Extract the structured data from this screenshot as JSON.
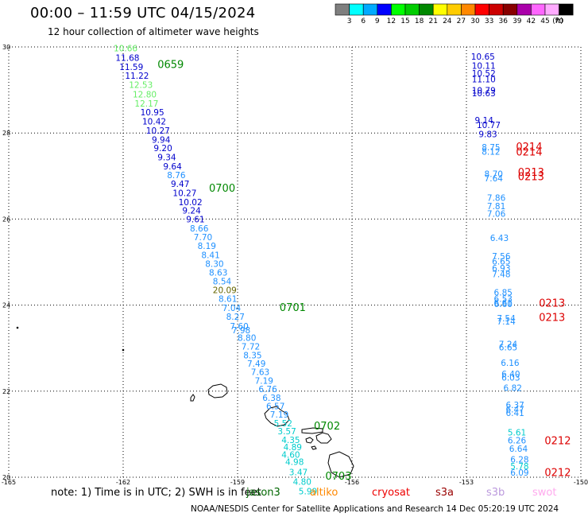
{
  "header": {
    "title": "00:00 – 11:59 UTC 04/15/2024",
    "subtitle": "12 hour collection of altimeter wave heights"
  },
  "legend": {
    "units": "(ft)",
    "bins": [
      {
        "label": "3",
        "color": "#7f7f7f"
      },
      {
        "label": "6",
        "color": "#00ffff"
      },
      {
        "label": "9",
        "color": "#00aaff"
      },
      {
        "label": "12",
        "color": "#0000ff"
      },
      {
        "label": "15",
        "color": "#00ff00"
      },
      {
        "label": "18",
        "color": "#00cc00"
      },
      {
        "label": "21",
        "color": "#008800"
      },
      {
        "label": "24",
        "color": "#ffff00"
      },
      {
        "label": "27",
        "color": "#ffcc00"
      },
      {
        "label": "30",
        "color": "#ff8800"
      },
      {
        "label": "33",
        "color": "#ff0000"
      },
      {
        "label": "36",
        "color": "#cc0000"
      },
      {
        "label": "39",
        "color": "#880000"
      },
      {
        "label": "42",
        "color": "#aa00aa"
      },
      {
        "label": "45",
        "color": "#ff66ff"
      },
      {
        "label": "70",
        "color": "#ffaaff"
      },
      {
        "label": "",
        "color": "#000000"
      }
    ]
  },
  "map": {
    "lat_range": [
      20,
      30
    ],
    "lon_range": [
      -165,
      -150
    ],
    "lat_labels": [
      "30",
      "28",
      "26",
      "24",
      "22",
      "20"
    ],
    "lon_labels": [
      "-165",
      "-162",
      "-159",
      "-156",
      "-153",
      "-150"
    ],
    "left_track": [
      {
        "v": "10.66",
        "lon": -162.25,
        "lat": 29.97,
        "c": "#66ee66"
      },
      {
        "v": "11.68",
        "lon": -162.2,
        "lat": 29.75,
        "c": "#0000cc"
      },
      {
        "v": "11.59",
        "lon": -162.1,
        "lat": 29.54,
        "c": "#0000cc"
      },
      {
        "v": "11.22",
        "lon": -161.95,
        "lat": 29.33,
        "c": "#0000cc"
      },
      {
        "v": "12.53",
        "lon": -161.85,
        "lat": 29.12,
        "c": "#66ee66"
      },
      {
        "v": "12.80",
        "lon": -161.75,
        "lat": 28.9,
        "c": "#66ee66"
      },
      {
        "v": "12.17",
        "lon": -161.7,
        "lat": 28.69,
        "c": "#66ee66"
      },
      {
        "v": "10.95",
        "lon": -161.55,
        "lat": 28.48,
        "c": "#0000cc"
      },
      {
        "v": "10.42",
        "lon": -161.5,
        "lat": 28.27,
        "c": "#0000cc"
      },
      {
        "v": "10.27",
        "lon": -161.4,
        "lat": 28.06,
        "c": "#0000cc"
      },
      {
        "v": "9.94",
        "lon": -161.25,
        "lat": 27.85,
        "c": "#0000cc"
      },
      {
        "v": "9.20",
        "lon": -161.2,
        "lat": 27.65,
        "c": "#0000cc"
      },
      {
        "v": "9.34",
        "lon": -161.1,
        "lat": 27.44,
        "c": "#0000cc"
      },
      {
        "v": "9.64",
        "lon": -160.95,
        "lat": 27.23,
        "c": "#0000cc"
      },
      {
        "v": "8.76",
        "lon": -160.85,
        "lat": 27.02,
        "c": "#1e90ff"
      },
      {
        "v": "9.47",
        "lon": -160.75,
        "lat": 26.82,
        "c": "#0000cc"
      },
      {
        "v": "10.27",
        "lon": -160.7,
        "lat": 26.61,
        "c": "#0000cc"
      },
      {
        "v": "10.02",
        "lon": -160.55,
        "lat": 26.4,
        "c": "#0000cc"
      },
      {
        "v": "9.24",
        "lon": -160.45,
        "lat": 26.2,
        "c": "#0000cc"
      },
      {
        "v": "9.61",
        "lon": -160.35,
        "lat": 26.0,
        "c": "#0000cc"
      },
      {
        "v": "8.66",
        "lon": -160.25,
        "lat": 25.79,
        "c": "#1e90ff"
      },
      {
        "v": "7.70",
        "lon": -160.15,
        "lat": 25.58,
        "c": "#1e90ff"
      },
      {
        "v": "8.19",
        "lon": -160.05,
        "lat": 25.38,
        "c": "#1e90ff"
      },
      {
        "v": "8.41",
        "lon": -159.95,
        "lat": 25.17,
        "c": "#1e90ff"
      },
      {
        "v": "8.30",
        "lon": -159.85,
        "lat": 24.96,
        "c": "#1e90ff"
      },
      {
        "v": "8.63",
        "lon": -159.75,
        "lat": 24.76,
        "c": "#1e90ff"
      },
      {
        "v": "8.54",
        "lon": -159.65,
        "lat": 24.56,
        "c": "#1e90ff"
      },
      {
        "v": "20.09",
        "lon": -159.65,
        "lat": 24.35,
        "c": "#666600"
      },
      {
        "v": "8.61",
        "lon": -159.5,
        "lat": 24.15,
        "c": "#1e90ff"
      },
      {
        "v": "7.04",
        "lon": -159.4,
        "lat": 23.94,
        "c": "#1e90ff"
      },
      {
        "v": "8.27",
        "lon": -159.3,
        "lat": 23.73,
        "c": "#1e90ff"
      },
      {
        "v": "7.60",
        "lon": -159.2,
        "lat": 23.51,
        "c": "#1e90ff"
      },
      {
        "v": "7.98",
        "lon": -159.15,
        "lat": 23.42,
        "c": "#1e90ff"
      },
      {
        "v": "8.80",
        "lon": -159.0,
        "lat": 23.24,
        "c": "#1e90ff"
      },
      {
        "v": "7.72",
        "lon": -158.9,
        "lat": 23.04,
        "c": "#1e90ff"
      },
      {
        "v": "8.35",
        "lon": -158.85,
        "lat": 22.84,
        "c": "#1e90ff"
      },
      {
        "v": "7.49",
        "lon": -158.75,
        "lat": 22.64,
        "c": "#1e90ff"
      },
      {
        "v": "7.63",
        "lon": -158.65,
        "lat": 22.45,
        "c": "#1e90ff"
      },
      {
        "v": "7.19",
        "lon": -158.55,
        "lat": 22.25,
        "c": "#1e90ff"
      },
      {
        "v": "6.76",
        "lon": -158.45,
        "lat": 22.05,
        "c": "#1e90ff"
      },
      {
        "v": "6.38",
        "lon": -158.35,
        "lat": 21.85,
        "c": "#1e90ff"
      },
      {
        "v": "6.57",
        "lon": -158.25,
        "lat": 21.65,
        "c": "#1e90ff"
      },
      {
        "v": "7.19",
        "lon": -158.15,
        "lat": 21.46,
        "c": "#1e90ff"
      },
      {
        "v": "5.52",
        "lon": -158.05,
        "lat": 21.26,
        "c": "#00cccc"
      },
      {
        "v": "3.57",
        "lon": -157.95,
        "lat": 21.07,
        "c": "#00cccc"
      },
      {
        "v": "4.35",
        "lon": -157.85,
        "lat": 20.87,
        "c": "#00cccc"
      },
      {
        "v": "4.89",
        "lon": -157.8,
        "lat": 20.7,
        "c": "#00cccc"
      },
      {
        "v": "4.60",
        "lon": -157.85,
        "lat": 20.53,
        "c": "#00cccc"
      },
      {
        "v": "4.98",
        "lon": -157.75,
        "lat": 20.36,
        "c": "#00cccc"
      },
      {
        "v": "3.47",
        "lon": -157.65,
        "lat": 20.12,
        "c": "#00cccc"
      },
      {
        "v": "4.80",
        "lon": -157.55,
        "lat": 19.9,
        "c": "#00cccc"
      },
      {
        "v": "5.99",
        "lon": -157.4,
        "lat": 19.68,
        "c": "#00cccc"
      }
    ],
    "right_track": [
      {
        "v": "10.65",
        "lon": -152.88,
        "lat": 29.78,
        "c": "#0000cc"
      },
      {
        "v": "10.11",
        "lon": -152.86,
        "lat": 29.57,
        "c": "#0000cc"
      },
      {
        "v": "10.52",
        "lon": -152.86,
        "lat": 29.39,
        "c": "#0000cc"
      },
      {
        "v": "11.10",
        "lon": -152.86,
        "lat": 29.25,
        "c": "#0000cc"
      },
      {
        "v": "10.79",
        "lon": -152.86,
        "lat": 28.99,
        "c": "#0000cc"
      },
      {
        "v": "10.63",
        "lon": -152.86,
        "lat": 28.93,
        "c": "#0000cc"
      },
      {
        "v": "9.14",
        "lon": -152.78,
        "lat": 28.3,
        "c": "#0000cc"
      },
      {
        "v": "10.77",
        "lon": -152.73,
        "lat": 28.19,
        "c": "#0000cc"
      },
      {
        "v": "9.83",
        "lon": -152.68,
        "lat": 27.98,
        "c": "#0000cc"
      },
      {
        "v": "8.75",
        "lon": -152.6,
        "lat": 27.67,
        "c": "#1e90ff"
      },
      {
        "v": "8.12",
        "lon": -152.6,
        "lat": 27.57,
        "c": "#1e90ff"
      },
      {
        "v": "8.70",
        "lon": -152.53,
        "lat": 27.05,
        "c": "#1e90ff"
      },
      {
        "v": "7.64",
        "lon": -152.53,
        "lat": 26.95,
        "c": "#1e90ff"
      },
      {
        "v": "7.86",
        "lon": -152.46,
        "lat": 26.5,
        "c": "#1e90ff"
      },
      {
        "v": "7.81",
        "lon": -152.46,
        "lat": 26.3,
        "c": "#1e90ff"
      },
      {
        "v": "7.06",
        "lon": -152.46,
        "lat": 26.13,
        "c": "#1e90ff"
      },
      {
        "v": "6.43",
        "lon": -152.38,
        "lat": 25.56,
        "c": "#1e90ff"
      },
      {
        "v": "7.56",
        "lon": -152.33,
        "lat": 25.14,
        "c": "#1e90ff"
      },
      {
        "v": "6.65",
        "lon": -152.33,
        "lat": 25.02,
        "c": "#1e90ff"
      },
      {
        "v": "6.93",
        "lon": -152.33,
        "lat": 24.86,
        "c": "#1e90ff"
      },
      {
        "v": "7.48",
        "lon": -152.33,
        "lat": 24.72,
        "c": "#1e90ff"
      },
      {
        "v": "6.85",
        "lon": -152.28,
        "lat": 24.3,
        "c": "#1e90ff"
      },
      {
        "v": "6.53",
        "lon": -152.28,
        "lat": 24.15,
        "c": "#1e90ff"
      },
      {
        "v": "6.61",
        "lon": -152.28,
        "lat": 24.06,
        "c": "#1e90ff"
      },
      {
        "v": "6.60",
        "lon": -152.28,
        "lat": 24.03,
        "c": "#1e90ff"
      },
      {
        "v": "7.54",
        "lon": -152.2,
        "lat": 23.7,
        "c": "#1e90ff"
      },
      {
        "v": "7.14",
        "lon": -152.2,
        "lat": 23.62,
        "c": "#1e90ff"
      },
      {
        "v": "7.24",
        "lon": -152.15,
        "lat": 23.1,
        "c": "#1e90ff"
      },
      {
        "v": "6.65",
        "lon": -152.15,
        "lat": 23.02,
        "c": "#1e90ff"
      },
      {
        "v": "6.16",
        "lon": -152.1,
        "lat": 22.66,
        "c": "#1e90ff"
      },
      {
        "v": "6.40",
        "lon": -152.08,
        "lat": 22.4,
        "c": "#1e90ff"
      },
      {
        "v": "6.03",
        "lon": -152.08,
        "lat": 22.32,
        "c": "#1e90ff"
      },
      {
        "v": "6.82",
        "lon": -152.03,
        "lat": 22.08,
        "c": "#1e90ff"
      },
      {
        "v": "6.37",
        "lon": -151.97,
        "lat": 21.68,
        "c": "#1e90ff"
      },
      {
        "v": "6.47",
        "lon": -151.97,
        "lat": 21.58,
        "c": "#1e90ff"
      },
      {
        "v": "6.41",
        "lon": -151.97,
        "lat": 21.5,
        "c": "#1e90ff"
      },
      {
        "v": "5.61",
        "lon": -151.92,
        "lat": 21.04,
        "c": "#00cccc"
      },
      {
        "v": "6.26",
        "lon": -151.92,
        "lat": 20.86,
        "c": "#1e90ff"
      },
      {
        "v": "6.64",
        "lon": -151.88,
        "lat": 20.67,
        "c": "#1e90ff"
      },
      {
        "v": "6.28",
        "lon": -151.85,
        "lat": 20.42,
        "c": "#1e90ff"
      },
      {
        "v": "5.78",
        "lon": -151.85,
        "lat": 20.26,
        "c": "#00cccc"
      },
      {
        "v": "6.09",
        "lon": -151.85,
        "lat": 20.11,
        "c": "#1e90ff"
      }
    ],
    "time_labels": [
      {
        "v": "0659",
        "lon": -161.1,
        "lat": 29.6,
        "c": "#008800"
      },
      {
        "v": "0700",
        "lon": -159.75,
        "lat": 26.73,
        "c": "#008800"
      },
      {
        "v": "0701",
        "lon": -157.9,
        "lat": 23.96,
        "c": "#008800"
      },
      {
        "v": "0702",
        "lon": -157.0,
        "lat": 21.2,
        "c": "#008800"
      },
      {
        "v": "0703",
        "lon": -156.7,
        "lat": 20.04,
        "c": "#008800"
      },
      {
        "v": "0214",
        "lon": -151.7,
        "lat": 27.69,
        "c": "#dd0000"
      },
      {
        "v": "0214",
        "lon": -151.7,
        "lat": 27.57,
        "c": "#dd0000"
      },
      {
        "v": "0213",
        "lon": -151.65,
        "lat": 27.1,
        "c": "#dd0000"
      },
      {
        "v": "0213",
        "lon": -151.65,
        "lat": 27.0,
        "c": "#dd0000"
      },
      {
        "v": "0213",
        "lon": -151.1,
        "lat": 24.06,
        "c": "#dd0000"
      },
      {
        "v": "0213",
        "lon": -151.1,
        "lat": 23.72,
        "c": "#dd0000"
      },
      {
        "v": "0212",
        "lon": -150.95,
        "lat": 20.86,
        "c": "#dd0000"
      },
      {
        "v": "0212",
        "lon": -150.95,
        "lat": 20.12,
        "c": "#dd0000"
      }
    ]
  },
  "footer": {
    "note": "note:  1) Time is in UTC;  2) SWH is in feet",
    "satellites": [
      {
        "name": "jason3",
        "color": "#006600"
      },
      {
        "name": "altiko",
        "color": "#ff8800"
      },
      {
        "name": "cryosat",
        "color": "#ee0000"
      },
      {
        "name": "s3a",
        "color": "#990000"
      },
      {
        "name": "s3b",
        "color": "#bb99dd"
      },
      {
        "name": "swot",
        "color": "#ffaaee"
      }
    ],
    "credit": "NOAA/NESDIS Center for Satellite Applications and Research    14 Dec 05:20:19 UTC 2024"
  }
}
